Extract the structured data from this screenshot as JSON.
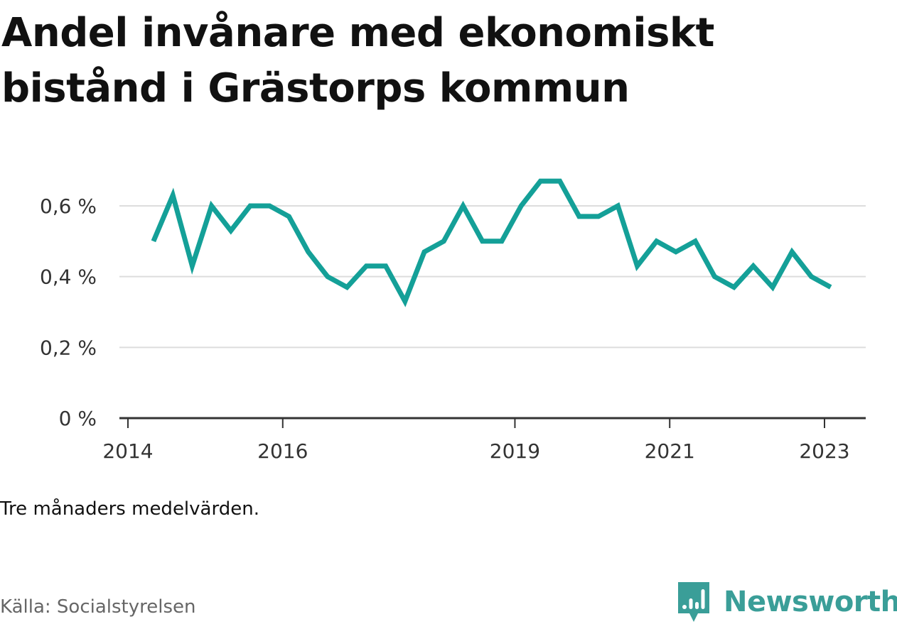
{
  "header": {
    "title": "Andel invånare med ekonomiskt bistånd i Grästorps kommun"
  },
  "chart_data": {
    "type": "line",
    "title": "Andel invånare med ekonomiskt bistånd i Grästorps kommun",
    "xlabel": "",
    "ylabel": "",
    "x_ticks": [
      {
        "year": 2014,
        "label": "2014"
      },
      {
        "year": 2016,
        "label": "2016"
      },
      {
        "year": 2019,
        "label": "2019"
      },
      {
        "year": 2021,
        "label": "2021"
      },
      {
        "year": 2023,
        "label": "2023"
      }
    ],
    "y_ticks": [
      {
        "value": 0,
        "label": "0 %"
      },
      {
        "value": 0.2,
        "label": "0,2 %"
      },
      {
        "value": 0.4,
        "label": "0,4 %"
      },
      {
        "value": 0.6,
        "label": "0,6 %"
      }
    ],
    "xlim": [
      2013.9,
      2023.5
    ],
    "ylim": [
      0,
      0.6
    ],
    "grid": true,
    "line_color": "#14a098",
    "series": [
      {
        "x": [
          2014.33,
          2014.58,
          2014.83,
          2015.08,
          2015.33,
          2015.58,
          2015.83,
          2016.08,
          2016.33,
          2016.58,
          2016.83,
          2017.08,
          2017.33,
          2017.58,
          2017.83,
          2018.08,
          2018.33,
          2018.58,
          2018.83,
          2019.08,
          2019.33,
          2019.58,
          2019.83,
          2020.08,
          2020.33,
          2020.58,
          2020.83,
          2021.08,
          2021.33,
          2021.58,
          2021.83,
          2022.08,
          2022.33,
          2022.58,
          2022.83,
          2023.08
        ],
        "values": [
          0.5,
          0.63,
          0.43,
          0.6,
          0.53,
          0.6,
          0.6,
          0.57,
          0.47,
          0.4,
          0.37,
          0.43,
          0.43,
          0.33,
          0.47,
          0.5,
          0.6,
          0.5,
          0.5,
          0.6,
          0.67,
          0.67,
          0.57,
          0.57,
          0.6,
          0.43,
          0.5,
          0.47,
          0.5,
          0.4,
          0.37,
          0.43,
          0.37,
          0.47,
          0.4,
          0.37
        ]
      }
    ]
  },
  "footer": {
    "note": "Tre månaders medelvärden.",
    "source": "Källa: Socialstyrelsen",
    "brand": "Newsworthy",
    "brand_color": "#3a9e98",
    "brand_icon": "newsworthy-logo-icon"
  }
}
